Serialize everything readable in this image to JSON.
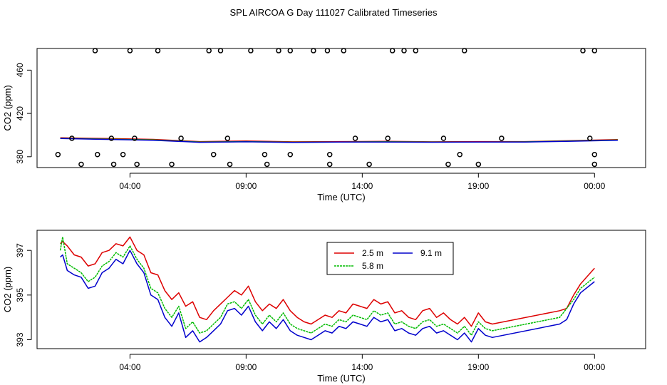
{
  "figure_title": "SPL AIRCOA G  Day 111027  Calibrated Timeseries",
  "chart_data": [
    {
      "type": "scatter",
      "title": "",
      "xlabel": "Time (UTC)",
      "ylabel": "CO2 (ppm)",
      "xlim": [
        -1.0,
        25.2
      ],
      "ylim": [
        370,
        480
      ],
      "xticks": [
        {
          "x": 3,
          "label": "04:00"
        },
        {
          "x": 8,
          "label": "09:00"
        },
        {
          "x": 13,
          "label": "14:00"
        },
        {
          "x": 18,
          "label": "19:00"
        },
        {
          "x": 23,
          "label": "00:00"
        }
      ],
      "yticks": [
        380,
        420,
        460
      ],
      "series": [
        {
          "name": "2.5 m",
          "color": "#dd0000",
          "x": [
            0,
            2,
            4,
            6,
            8,
            10,
            12,
            14,
            16,
            18,
            20,
            22,
            24
          ],
          "y": [
            397.5,
            396.8,
            396.0,
            394.0,
            394.5,
            393.8,
            394.0,
            394.2,
            393.8,
            394.0,
            394.0,
            394.8,
            395.8
          ]
        },
        {
          "name": "5.8 m",
          "color": "#00bb00",
          "x": [
            0,
            2,
            4,
            6,
            8,
            10,
            12,
            14,
            16,
            18,
            20,
            22,
            24
          ],
          "y": [
            397.0,
            396.3,
            395.5,
            393.6,
            394.0,
            393.4,
            393.6,
            393.8,
            393.5,
            393.6,
            393.7,
            394.5,
            395.4
          ]
        },
        {
          "name": "9.1 m",
          "color": "#0000cc",
          "x": [
            0,
            2,
            4,
            6,
            8,
            10,
            12,
            14,
            16,
            18,
            20,
            22,
            24
          ],
          "y": [
            396.8,
            396.0,
            395.2,
            393.3,
            393.8,
            393.2,
            393.5,
            393.6,
            393.4,
            393.5,
            393.6,
            394.3,
            395.2
          ]
        }
      ],
      "outliers": {
        "x": [
          1.5,
          3.0,
          4.2,
          6.4,
          6.9,
          8.2,
          9.4,
          9.9,
          10.9,
          11.5,
          12.2,
          14.3,
          14.8,
          15.3,
          17.4,
          22.5,
          23.0,
          0.5,
          2.2,
          3.2,
          5.2,
          7.2,
          12.7,
          14.1,
          16.5,
          19.0,
          22.8,
          -0.1,
          1.6,
          2.7,
          6.6,
          8.8,
          9.9,
          11.6,
          17.2,
          23.0,
          0.9,
          2.3,
          3.3,
          4.8,
          7.3,
          8.9,
          11.6,
          13.3,
          16.7,
          18.0,
          23.0
        ],
        "y": [
          478,
          478,
          478,
          478,
          478,
          478,
          478,
          478,
          478,
          478,
          478,
          478,
          478,
          478,
          478,
          478,
          478,
          397,
          397,
          397,
          397,
          397,
          397,
          397,
          397,
          397,
          397,
          382,
          382,
          382,
          382,
          382,
          382,
          382,
          382,
          382,
          373,
          373,
          373,
          373,
          373,
          373,
          373,
          373,
          373,
          373,
          373
        ]
      }
    },
    {
      "type": "line",
      "title": "",
      "xlabel": "Time (UTC)",
      "ylabel": "CO2 (ppm)",
      "xlim": [
        -1.0,
        25.2
      ],
      "ylim": [
        392.6,
        397.9
      ],
      "xticks": [
        {
          "x": 3,
          "label": "04:00"
        },
        {
          "x": 8,
          "label": "09:00"
        },
        {
          "x": 13,
          "label": "14:00"
        },
        {
          "x": 18,
          "label": "19:00"
        },
        {
          "x": 23,
          "label": "00:00"
        }
      ],
      "yticks": [
        393,
        395,
        397
      ],
      "legend": {
        "position": "top-center"
      },
      "series": [
        {
          "name": "2.5 m",
          "color": "#dd0000",
          "x": [
            0.0,
            0.1,
            0.3,
            0.6,
            0.9,
            1.2,
            1.5,
            1.8,
            2.1,
            2.4,
            2.7,
            3.0,
            3.3,
            3.6,
            3.9,
            4.2,
            4.5,
            4.8,
            5.1,
            5.4,
            5.7,
            6.0,
            6.3,
            6.6,
            6.9,
            7.2,
            7.5,
            7.8,
            8.1,
            8.4,
            8.7,
            9.0,
            9.3,
            9.6,
            9.9,
            10.2,
            10.5,
            10.8,
            11.1,
            11.4,
            11.7,
            12.0,
            12.3,
            12.6,
            12.9,
            13.2,
            13.5,
            13.8,
            14.1,
            14.4,
            14.7,
            15.0,
            15.3,
            15.6,
            15.9,
            16.2,
            16.5,
            16.8,
            17.1,
            17.4,
            17.7,
            18.0,
            18.3,
            18.6,
            21.5,
            21.8,
            22.1,
            22.4,
            23.0
          ],
          "y": [
            397.3,
            397.4,
            397.2,
            396.8,
            396.7,
            396.3,
            396.4,
            396.9,
            397.0,
            397.3,
            397.2,
            397.6,
            397.0,
            396.8,
            396.0,
            395.9,
            395.2,
            394.8,
            395.1,
            394.5,
            394.7,
            394.0,
            393.9,
            394.3,
            394.6,
            394.9,
            395.2,
            395.0,
            395.4,
            394.7,
            394.3,
            394.6,
            394.4,
            394.8,
            394.3,
            394.0,
            393.8,
            393.7,
            393.9,
            394.1,
            394.0,
            394.3,
            394.2,
            394.6,
            394.5,
            394.4,
            394.8,
            394.6,
            394.7,
            394.2,
            394.3,
            394.0,
            393.9,
            394.3,
            394.4,
            394.0,
            394.2,
            393.9,
            393.7,
            394.0,
            393.6,
            394.2,
            393.8,
            393.7,
            394.3,
            394.4,
            395.0,
            395.5,
            396.2
          ]
        },
        {
          "name": "5.8 m",
          "color": "#00bb00",
          "x": [
            0.0,
            0.1,
            0.3,
            0.6,
            0.9,
            1.2,
            1.5,
            1.8,
            2.1,
            2.4,
            2.7,
            3.0,
            3.3,
            3.6,
            3.9,
            4.2,
            4.5,
            4.8,
            5.1,
            5.4,
            5.7,
            6.0,
            6.3,
            6.6,
            6.9,
            7.2,
            7.5,
            7.8,
            8.1,
            8.4,
            8.7,
            9.0,
            9.3,
            9.6,
            9.9,
            10.2,
            10.5,
            10.8,
            11.1,
            11.4,
            11.7,
            12.0,
            12.3,
            12.6,
            12.9,
            13.2,
            13.5,
            13.8,
            14.1,
            14.4,
            14.7,
            15.0,
            15.3,
            15.6,
            15.9,
            16.2,
            16.5,
            16.8,
            17.1,
            17.4,
            17.7,
            18.0,
            18.3,
            18.6,
            21.5,
            21.8,
            22.1,
            22.4,
            23.0
          ],
          "y": [
            397.0,
            397.6,
            396.4,
            396.2,
            396.0,
            395.6,
            395.8,
            396.3,
            396.5,
            396.9,
            396.7,
            397.2,
            396.6,
            396.2,
            395.3,
            395.1,
            394.4,
            394.0,
            394.5,
            393.5,
            393.8,
            393.3,
            393.4,
            393.7,
            394.0,
            394.6,
            394.7,
            394.4,
            394.8,
            394.1,
            393.7,
            394.1,
            393.8,
            394.2,
            393.7,
            393.5,
            393.4,
            393.3,
            393.5,
            393.7,
            393.6,
            393.9,
            393.8,
            394.1,
            394.0,
            393.9,
            394.3,
            394.1,
            394.2,
            393.7,
            393.8,
            393.6,
            393.5,
            393.8,
            393.9,
            393.6,
            393.7,
            393.5,
            393.3,
            393.6,
            393.2,
            393.8,
            393.5,
            393.4,
            394.0,
            394.4,
            394.8,
            395.3,
            395.8
          ]
        },
        {
          "name": "9.1 m",
          "color": "#0000cc",
          "x": [
            0.0,
            0.1,
            0.3,
            0.6,
            0.9,
            1.2,
            1.5,
            1.8,
            2.1,
            2.4,
            2.7,
            3.0,
            3.3,
            3.6,
            3.9,
            4.2,
            4.5,
            4.8,
            5.1,
            5.4,
            5.7,
            6.0,
            6.3,
            6.6,
            6.9,
            7.2,
            7.5,
            7.8,
            8.1,
            8.4,
            8.7,
            9.0,
            9.3,
            9.6,
            9.9,
            10.2,
            10.5,
            10.8,
            11.1,
            11.4,
            11.7,
            12.0,
            12.3,
            12.6,
            12.9,
            13.2,
            13.5,
            13.8,
            14.1,
            14.4,
            14.7,
            15.0,
            15.3,
            15.6,
            15.9,
            16.2,
            16.5,
            16.8,
            17.1,
            17.4,
            17.7,
            18.0,
            18.3,
            18.6,
            21.5,
            21.8,
            22.1,
            22.4,
            23.0
          ],
          "y": [
            396.7,
            396.8,
            396.1,
            395.9,
            395.8,
            395.3,
            395.4,
            396.0,
            396.2,
            396.6,
            396.4,
            397.0,
            396.4,
            396.0,
            395.0,
            394.8,
            394.0,
            393.6,
            394.2,
            393.1,
            393.4,
            392.9,
            393.1,
            393.4,
            393.7,
            394.3,
            394.4,
            394.1,
            394.5,
            393.8,
            393.4,
            393.8,
            393.5,
            393.9,
            393.4,
            393.2,
            393.1,
            393.0,
            393.2,
            393.4,
            393.3,
            393.6,
            393.5,
            393.8,
            393.7,
            393.6,
            394.0,
            393.8,
            393.9,
            393.4,
            393.5,
            393.3,
            393.2,
            393.5,
            393.6,
            393.3,
            393.4,
            393.2,
            393.0,
            393.3,
            392.9,
            393.5,
            393.2,
            393.1,
            393.7,
            393.9,
            394.6,
            395.1,
            395.6
          ]
        }
      ]
    }
  ]
}
